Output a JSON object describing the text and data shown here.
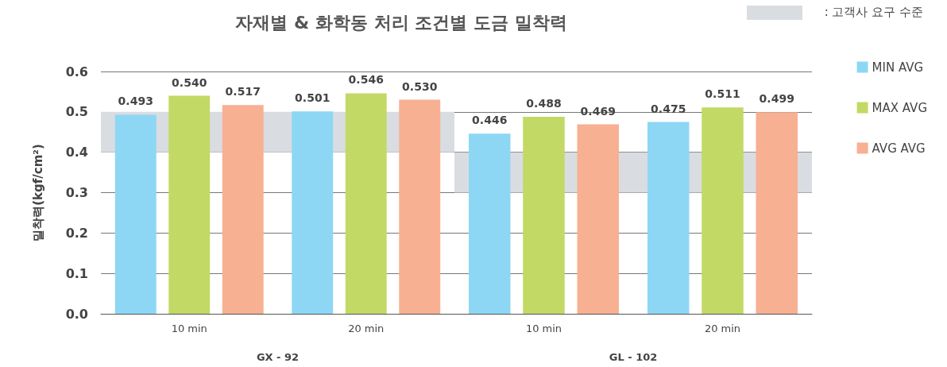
{
  "chart_data": [
    {
      "type": "bar",
      "title": "자재별 & 화학동 처리 조건별 도금 밀착력",
      "ylabel": "밀착력(kgf/cm²)",
      "xlabel": "GX - 92",
      "categories": [
        "10 min",
        "20 min"
      ],
      "series": [
        {
          "color": "#8dd7f5",
          "values": [
            0.493,
            0.501
          ],
          "value_labels": [
            "0.493",
            "0.501"
          ]
        },
        {
          "color": "#c2d965",
          "values": [
            0.54,
            0.546
          ],
          "value_labels": [
            "0.540",
            "0.546"
          ]
        },
        {
          "color": "#f7b092",
          "values": [
            0.517,
            0.53
          ],
          "value_labels": [
            "0.517",
            "0.530"
          ]
        }
      ],
      "ylim": [
        0,
        0.6
      ],
      "yticks": [
        {
          "value": 0,
          "label": "0.0"
        },
        0.1,
        0.2,
        0.3,
        0.4,
        0.5,
        0.6
      ],
      "grid": "y",
      "bands": [
        {
          "axis": "y",
          "from": 0.4,
          "to": 0.5,
          "label": ": 고객사 요구 수준",
          "color": "#d9dde1"
        }
      ]
    },
    {
      "type": "bar",
      "xlabel": "GL - 102",
      "categories": [
        "10 min",
        "20 min"
      ],
      "series": [
        {
          "name": "MIN AVG",
          "color": "#8dd7f5",
          "values": [
            0.446,
            0.475
          ],
          "value_labels": [
            "0.446",
            "0.475"
          ]
        },
        {
          "name": "MAX AVG",
          "color": "#c2d965",
          "values": [
            0.488,
            0.511
          ],
          "value_labels": [
            "0.488",
            "0.511"
          ]
        },
        {
          "name": "AVG AVG",
          "color": "#f7b092",
          "values": [
            0.469,
            0.499
          ],
          "value_labels": [
            "0.469",
            "0.499"
          ]
        }
      ],
      "ylim": [
        0,
        0.6
      ],
      "yticks": [
        0,
        0.1,
        0.2,
        0.3,
        0.4,
        0.5,
        0.6
      ],
      "grid": "y",
      "tick_labels": "x",
      "legend": "right",
      "bands": [
        {
          "axis": "y",
          "from": 0.3,
          "to": 0.4,
          "color": "#d9dde1"
        }
      ]
    }
  ]
}
